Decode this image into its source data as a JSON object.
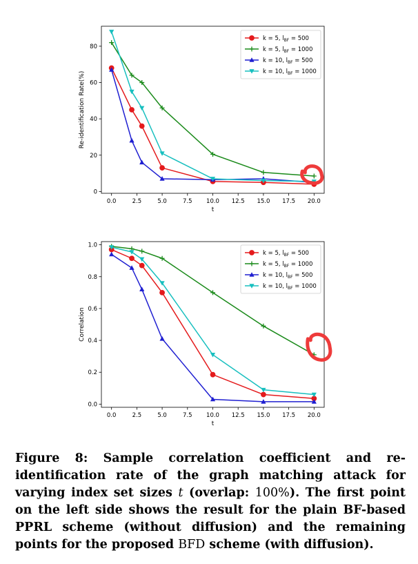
{
  "chart_data": [
    {
      "type": "line",
      "title": "",
      "xlabel": "t",
      "ylabel": "Re-identification Rate(%)",
      "xlim": [
        -1,
        21
      ],
      "ylim": [
        -1,
        91
      ],
      "xticks": [
        "0.0",
        "2.5",
        "5.0",
        "7.5",
        "10.0",
        "12.5",
        "15.0",
        "17.5",
        "20.0"
      ],
      "xtick_values": [
        0,
        2.5,
        5,
        7.5,
        10,
        12.5,
        15,
        17.5,
        20
      ],
      "yticks": [
        "0",
        "20",
        "40",
        "60",
        "80"
      ],
      "ytick_values": [
        0,
        20,
        40,
        60,
        80
      ],
      "grid": false,
      "legend": "top-right",
      "x": [
        0,
        2,
        3,
        5,
        10,
        15,
        20
      ],
      "series": [
        {
          "name": "k = 5, l_BF = 500",
          "label_prefix": "k = 5, ",
          "label_sub": "BF",
          "label_suffix": " = 500",
          "color": "#e41a1c",
          "marker": "circle",
          "values": [
            68,
            45,
            36,
            13,
            5.5,
            5,
            4
          ]
        },
        {
          "name": "k = 5, l_BF = 1000",
          "label_prefix": "k = 5, ",
          "label_sub": "BF",
          "label_suffix": " = 1000",
          "color": "#1a8a1a",
          "marker": "plus",
          "values": [
            82,
            64,
            60,
            46,
            20.5,
            10.5,
            8.5
          ]
        },
        {
          "name": "k = 10, l_BF = 500",
          "label_prefix": "k = 10, ",
          "label_sub": "BF",
          "label_suffix": " = 500",
          "color": "#1f1fd1",
          "marker": "triangle-up",
          "values": [
            67,
            28,
            16,
            7,
            6.5,
            7,
            5
          ]
        },
        {
          "name": "k = 10, l_BF = 1000",
          "label_prefix": "k = 10, ",
          "label_sub": "BF",
          "label_suffix": " = 1000",
          "color": "#17bfbf",
          "marker": "triangle-down",
          "values": [
            88,
            55,
            46,
            21,
            7,
            6,
            5.5
          ]
        }
      ]
    },
    {
      "type": "line",
      "title": "",
      "xlabel": "t",
      "ylabel": "Correlation",
      "xlim": [
        -1,
        21
      ],
      "ylim": [
        -0.02,
        1.02
      ],
      "xticks": [
        "0.0",
        "2.5",
        "5.0",
        "7.5",
        "10.0",
        "12.5",
        "15.0",
        "17.5",
        "20.0"
      ],
      "xtick_values": [
        0,
        2.5,
        5,
        7.5,
        10,
        12.5,
        15,
        17.5,
        20
      ],
      "yticks": [
        "0.0",
        "0.2",
        "0.4",
        "0.6",
        "0.8",
        "1.0"
      ],
      "ytick_values": [
        0,
        0.2,
        0.4,
        0.6,
        0.8,
        1.0
      ],
      "grid": false,
      "legend": "top-right",
      "x": [
        0,
        2,
        3,
        5,
        10,
        15,
        20
      ],
      "series": [
        {
          "name": "k = 5, l_BF = 500",
          "label_prefix": "k = 5, ",
          "label_sub": "BF",
          "label_suffix": " = 500",
          "color": "#e41a1c",
          "marker": "circle",
          "values": [
            0.97,
            0.915,
            0.87,
            0.7,
            0.185,
            0.06,
            0.035
          ]
        },
        {
          "name": "k = 5, l_BF = 1000",
          "label_prefix": "k = 5, ",
          "label_sub": "BF",
          "label_suffix": " = 1000",
          "color": "#1a8a1a",
          "marker": "plus",
          "values": [
            0.99,
            0.975,
            0.96,
            0.915,
            0.7,
            0.49,
            0.31
          ]
        },
        {
          "name": "k = 10, l_BF = 500",
          "label_prefix": "k = 10, ",
          "label_sub": "BF",
          "label_suffix": " = 500",
          "color": "#1f1fd1",
          "marker": "triangle-up",
          "values": [
            0.94,
            0.855,
            0.72,
            0.41,
            0.03,
            0.015,
            0.015
          ]
        },
        {
          "name": "k = 10, l_BF = 1000",
          "label_prefix": "k = 10, ",
          "label_sub": "BF",
          "label_suffix": " = 1000",
          "color": "#17bfbf",
          "marker": "triangle-down",
          "values": [
            0.985,
            0.955,
            0.91,
            0.76,
            0.31,
            0.09,
            0.06
          ]
        }
      ]
    }
  ],
  "annotations": [
    {
      "chart": 0,
      "x": 20,
      "y": 8.5,
      "shape": "hand-drawn-circle",
      "color": "#ee3b3b"
    },
    {
      "chart": 1,
      "x": 20,
      "y": 0.31,
      "shape": "hand-drawn-circle",
      "color": "#ee3b3b"
    }
  ],
  "caption": {
    "lead": "Figure 8: ",
    "text_a": "Sample correlation coefficient and re-identification rate of the graph matching attack for varying index set sizes ",
    "var": "t",
    "text_b": " (overlap: ",
    "pct": "100%",
    "text_c": "). The first point on the left side shows the result for the plain BF-based PPRL scheme (without diffusion) and the remaining points for the proposed ",
    "bfd": "BFD",
    "text_d": " scheme (with diffusion)."
  }
}
